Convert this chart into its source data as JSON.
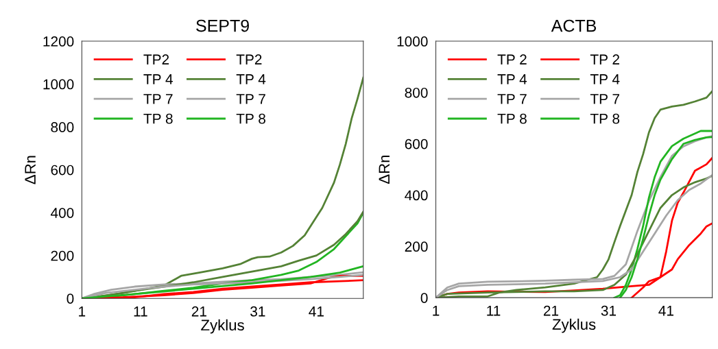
{
  "chart_data": [
    {
      "type": "line",
      "title": "SEPT9",
      "xlabel": "Zyklus",
      "ylabel": "ΔRn",
      "xlim": [
        1,
        49
      ],
      "xticks": [
        1,
        11,
        21,
        31,
        41
      ],
      "ylim": [
        0,
        1200
      ],
      "yticks": [
        0,
        200,
        400,
        600,
        800,
        1000,
        1200
      ],
      "grid": false,
      "legend": "top left",
      "marker": "none",
      "line_style": "solid",
      "series": [
        {
          "name": "TP2",
          "color": "#ff0000",
          "x": [
            1,
            10,
            15,
            20,
            25,
            30,
            35,
            40,
            45,
            49
          ],
          "values": [
            0,
            5,
            20,
            30,
            45,
            55,
            65,
            75,
            80,
            85
          ]
        },
        {
          "name": "TP 4",
          "color": "#548235",
          "x": [
            1,
            4,
            8,
            12,
            15,
            18,
            21,
            25,
            28,
            30,
            31,
            33,
            35,
            37,
            39,
            41,
            42,
            44,
            45,
            46,
            47,
            48,
            49
          ],
          "values": [
            0,
            10,
            25,
            45,
            60,
            106,
            120,
            140,
            160,
            185,
            192,
            195,
            214,
            245,
            294,
            380,
            422,
            540,
            624,
            720,
            838,
            930,
            1030
          ]
        },
        {
          "name": "TP 7",
          "color": "#a6a6a6",
          "x": [
            1,
            3,
            6,
            10,
            15,
            20,
            25,
            30,
            35,
            40,
            45,
            49
          ],
          "values": [
            0,
            20,
            40,
            55,
            65,
            70,
            78,
            85,
            90,
            100,
            110,
            122
          ]
        },
        {
          "name": "TP 8",
          "color": "#22b522",
          "x": [
            1,
            5,
            10,
            15,
            20,
            25,
            30,
            35,
            38,
            41,
            44,
            46,
            48,
            49
          ],
          "values": [
            0,
            5,
            20,
            35,
            50,
            70,
            85,
            110,
            130,
            170,
            230,
            290,
            350,
            400
          ]
        },
        {
          "name": "TP2",
          "color": "#ff0000",
          "x": [
            1,
            8,
            15,
            20,
            25,
            30,
            35,
            40,
            43,
            45,
            49
          ],
          "values": [
            0,
            5,
            15,
            25,
            40,
            50,
            60,
            70,
            95,
            105,
            105
          ]
        },
        {
          "name": "TP 4",
          "color": "#548235",
          "x": [
            1,
            5,
            10,
            15,
            20,
            25,
            30,
            35,
            38,
            41,
            44,
            46,
            48,
            49
          ],
          "values": [
            0,
            12,
            35,
            55,
            75,
            100,
            125,
            150,
            176,
            200,
            250,
            300,
            360,
            405
          ]
        },
        {
          "name": "TP 7",
          "color": "#a6a6a6",
          "x": [
            1,
            5,
            10,
            15,
            20,
            30,
            40,
            45,
            49
          ],
          "values": [
            0,
            25,
            40,
            55,
            65,
            75,
            90,
            100,
            110
          ]
        },
        {
          "name": "TP 8",
          "color": "#22b522",
          "x": [
            1,
            10,
            20,
            30,
            35,
            40,
            45,
            49
          ],
          "values": [
            0,
            20,
            45,
            70,
            85,
            100,
            120,
            150
          ]
        }
      ]
    },
    {
      "type": "line",
      "title": "ACTB",
      "xlabel": "Zyklus",
      "ylabel": "ΔRn",
      "xlim": [
        1,
        49
      ],
      "xticks": [
        1,
        11,
        21,
        31,
        41
      ],
      "ylim": [
        0,
        1000
      ],
      "yticks": [
        0,
        200,
        400,
        600,
        800,
        1000
      ],
      "grid": false,
      "legend": "top left",
      "marker": "none",
      "line_style": "solid",
      "series": [
        {
          "name": "TP 2",
          "color": "#ff0000",
          "x": [
            1,
            3,
            5,
            10,
            20,
            25,
            30,
            35,
            38,
            40,
            41,
            42,
            43,
            44,
            46,
            48,
            49
          ],
          "values": [
            0,
            15,
            20,
            25,
            22,
            28,
            35,
            45,
            50,
            80,
            180,
            300,
            370,
            410,
            495,
            520,
            545
          ]
        },
        {
          "name": "TP 4",
          "color": "#548235",
          "x": [
            1,
            5,
            10,
            12,
            15,
            20,
            25,
            29,
            30,
            31,
            32,
            33,
            34,
            35,
            36,
            37,
            38,
            39,
            40,
            42,
            44,
            46,
            48,
            49
          ],
          "values": [
            0,
            5,
            5,
            20,
            30,
            40,
            55,
            80,
            110,
            150,
            216,
            280,
            340,
            400,
            490,
            560,
            644,
            700,
            733,
            745,
            752,
            765,
            780,
            805
          ]
        },
        {
          "name": "TP 7",
          "color": "#a6a6a6",
          "x": [
            1,
            3,
            5,
            10,
            20,
            25,
            30,
            32,
            34,
            36,
            38,
            40,
            42,
            44,
            46,
            48,
            49
          ],
          "values": [
            0,
            40,
            55,
            62,
            66,
            70,
            73,
            85,
            130,
            260,
            377,
            470,
            553,
            590,
            610,
            625,
            630
          ]
        },
        {
          "name": "TP 8",
          "color": "#22b522",
          "x": [
            32,
            33,
            34,
            35,
            36,
            37,
            38,
            39,
            40,
            42,
            44,
            46,
            47,
            49
          ],
          "values": [
            0,
            10,
            50,
            110,
            190,
            280,
            390,
            470,
            530,
            591,
            620,
            640,
            650,
            650
          ]
        },
        {
          "name": "TP 2",
          "color": "#ff0000",
          "x": [
            35,
            36,
            37,
            38,
            40,
            42,
            43,
            45,
            47,
            48,
            49
          ],
          "values": [
            0,
            20,
            40,
            64,
            80,
            110,
            150,
            205,
            250,
            278,
            290
          ]
        },
        {
          "name": "TP 4",
          "color": "#548235",
          "x": [
            1,
            3,
            10,
            20,
            25,
            30,
            32,
            34,
            36,
            38,
            40,
            42,
            44,
            46,
            48,
            49
          ],
          "values": [
            0,
            15,
            20,
            25,
            25,
            30,
            50,
            90,
            170,
            260,
            350,
            400,
            430,
            450,
            465,
            475
          ]
        },
        {
          "name": "TP 7",
          "color": "#a6a6a6",
          "x": [
            1,
            3,
            5,
            10,
            20,
            30,
            33,
            35,
            37,
            39,
            41,
            43,
            45,
            47,
            49
          ],
          "values": [
            0,
            30,
            45,
            50,
            55,
            65,
            80,
            110,
            180,
            250,
            320,
            380,
            420,
            445,
            478
          ]
        },
        {
          "name": "TP 8",
          "color": "#22b522",
          "x": [
            33,
            34,
            35,
            36,
            37,
            38,
            39,
            40,
            42,
            44,
            46,
            48,
            49
          ],
          "values": [
            0,
            30,
            80,
            150,
            230,
            320,
            400,
            460,
            540,
            600,
            615,
            625,
            626
          ]
        }
      ]
    }
  ]
}
